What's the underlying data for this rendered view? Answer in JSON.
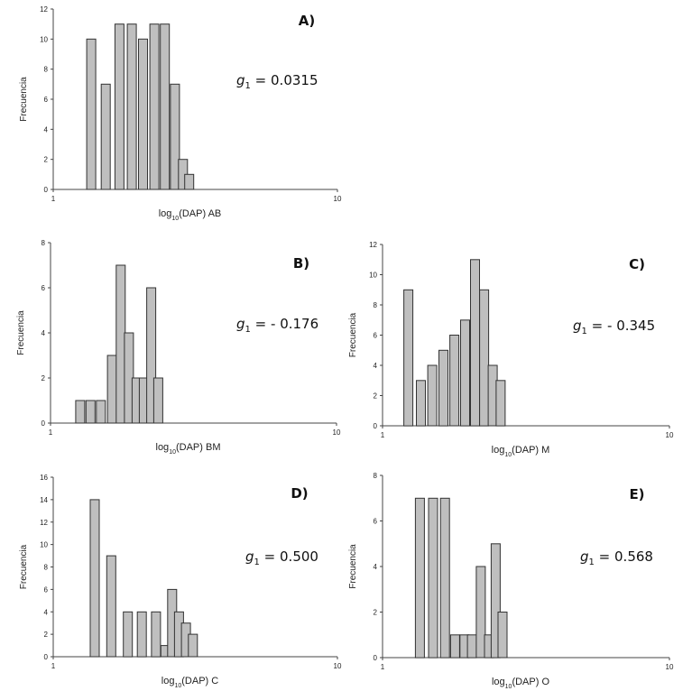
{
  "figure": {
    "chart_data": [
      {
        "type": "bar",
        "panel_label": "A)",
        "xlabel": {
          "prefix": "log",
          "sub": "10",
          "suffix": "(DAP) AB"
        },
        "ylabel": "Frecuencia",
        "x_scale": "log",
        "xlim": [
          1,
          10
        ],
        "x_ticks": [
          "1",
          "10"
        ],
        "ylim": [
          0,
          12
        ],
        "y_ticks": [
          "0",
          "2",
          "4",
          "6",
          "8",
          "10",
          "12"
        ],
        "x": [
          1.36,
          1.53,
          1.71,
          1.89,
          2.07,
          2.27,
          2.47,
          2.68,
          2.86,
          3.01
        ],
        "values": [
          10,
          7,
          11,
          11,
          10,
          11,
          11,
          7,
          2,
          1
        ],
        "annotation": {
          "symbol": "g",
          "sub": "1",
          "text": " = 0.0315"
        }
      },
      {
        "type": "bar",
        "panel_label": "B)",
        "xlabel": {
          "prefix": "log",
          "sub": "10",
          "suffix": "(DAP) BM"
        },
        "ylabel": "Frecuencia",
        "x_scale": "log",
        "xlim": [
          1,
          10
        ],
        "x_ticks": [
          "1",
          "10"
        ],
        "ylim": [
          0,
          8
        ],
        "y_ticks": [
          "0",
          "2",
          "4",
          "6",
          "8"
        ],
        "x": [
          1.27,
          1.38,
          1.5,
          1.64,
          1.76,
          1.88,
          2.0,
          2.12,
          2.25,
          2.38
        ],
        "values": [
          1,
          1,
          1,
          3,
          7,
          4,
          2,
          2,
          6,
          2
        ],
        "annotation": {
          "symbol": "g",
          "sub": "1",
          "text": " = - 0.176"
        }
      },
      {
        "type": "bar",
        "panel_label": "C)",
        "xlabel": {
          "prefix": "log",
          "sub": "10",
          "suffix": "(DAP) M"
        },
        "ylabel": "Frecuencia",
        "x_scale": "log",
        "xlim": [
          1,
          10
        ],
        "x_ticks": [
          "1",
          "10"
        ],
        "ylim": [
          0,
          12
        ],
        "y_ticks": [
          "0",
          "2",
          "4",
          "6",
          "8",
          "10",
          "12"
        ],
        "x": [
          1.23,
          1.36,
          1.49,
          1.63,
          1.78,
          1.94,
          2.1,
          2.26,
          2.42,
          2.58
        ],
        "values": [
          9,
          3,
          4,
          5,
          6,
          7,
          11,
          9,
          4,
          3
        ],
        "annotation": {
          "symbol": "g",
          "sub": "1",
          "text": " = - 0.345"
        }
      },
      {
        "type": "bar",
        "panel_label": "D)",
        "xlabel": {
          "prefix": "log",
          "sub": "10",
          "suffix": "(DAP) C"
        },
        "ylabel": "Frecuencia",
        "x_scale": "log",
        "xlim": [
          1,
          10
        ],
        "x_ticks": [
          "1",
          "10"
        ],
        "ylim": [
          0,
          16
        ],
        "y_ticks": [
          "0",
          "2",
          "4",
          "6",
          "8",
          "10",
          "12",
          "14",
          "16"
        ],
        "x": [
          1.4,
          1.6,
          1.83,
          2.05,
          2.3,
          2.48,
          2.62,
          2.77,
          2.93,
          3.1
        ],
        "values": [
          14,
          9,
          4,
          4,
          4,
          1,
          6,
          4,
          3,
          2
        ],
        "annotation": {
          "symbol": "g",
          "sub": "1",
          "text": " = 0.500"
        }
      },
      {
        "type": "bar",
        "panel_label": "E)",
        "xlabel": {
          "prefix": "log",
          "sub": "10",
          "suffix": "(DAP) O"
        },
        "ylabel": "Frecuencia",
        "x_scale": "log",
        "xlim": [
          1,
          10
        ],
        "x_ticks": [
          "1",
          "10"
        ],
        "ylim": [
          0,
          8
        ],
        "y_ticks": [
          "0",
          "2",
          "4",
          "6",
          "8"
        ],
        "x": [
          1.35,
          1.5,
          1.65,
          1.79,
          1.93,
          2.05,
          2.2,
          2.35,
          2.48,
          2.62
        ],
        "values": [
          7,
          7,
          7,
          1,
          1,
          1,
          4,
          1,
          5,
          2
        ],
        "annotation": {
          "symbol": "g",
          "sub": "1",
          "text": " = 0.568"
        }
      }
    ]
  }
}
